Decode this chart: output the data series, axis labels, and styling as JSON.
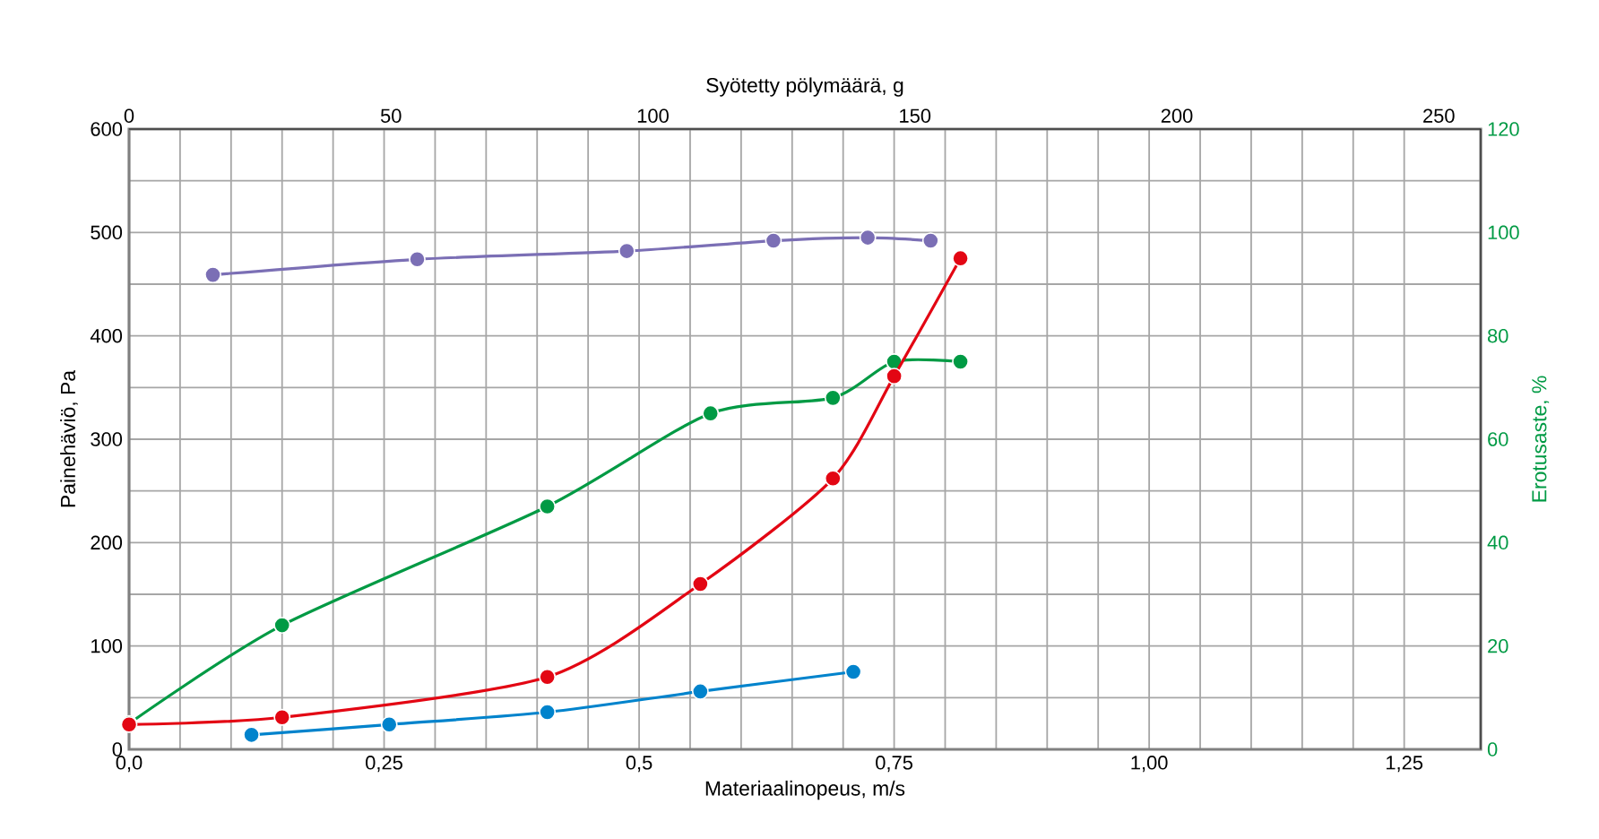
{
  "chart_data": {
    "type": "line",
    "xlabel": "Materiaalinopeus, m/s",
    "x2label": "Syötetty pölymäärä, g",
    "ylabel": "Painehäviö, Pa",
    "y2label": "Erotusaste, %",
    "xlim": [
      0,
      1.325
    ],
    "xticks": [
      {
        "value": 0,
        "label": "0,0"
      },
      {
        "value": 0.25,
        "label": "0,25"
      },
      {
        "value": 0.5,
        "label": "0,5"
      },
      {
        "value": 0.75,
        "label": "0,75"
      },
      {
        "value": 1.0,
        "label": "1,00"
      },
      {
        "value": 1.25,
        "label": "1,25"
      }
    ],
    "x2lim": [
      0,
      258
    ],
    "x2ticks": [
      0,
      50,
      100,
      150,
      200,
      250
    ],
    "ylim": [
      0,
      600
    ],
    "yticks": [
      0,
      100,
      200,
      300,
      400,
      500,
      600
    ],
    "y2lim": [
      0,
      120
    ],
    "y2ticks": [
      0,
      20,
      40,
      60,
      80,
      100,
      120
    ],
    "grid": true,
    "marker": "circle",
    "line_style": "solid",
    "series": [
      {
        "color": "#7b6fb5",
        "axis": "x2",
        "x": [
          16,
          55,
          95,
          123,
          141,
          153
        ],
        "values": [
          459,
          474,
          482,
          492,
          495,
          492
        ]
      },
      {
        "color": "#009a44",
        "axis": "y2",
        "x": [
          0,
          0.15,
          0.41,
          0.57,
          0.69,
          0.75,
          0.815
        ],
        "values": [
          5,
          24,
          47,
          65,
          68,
          75,
          75
        ]
      },
      {
        "color": "#e30613",
        "x": [
          0,
          0.15,
          0.41,
          0.56,
          0.69,
          0.75,
          0.815
        ],
        "values": [
          24,
          31,
          70,
          160,
          262,
          361,
          475
        ]
      },
      {
        "color": "#0083cc",
        "x": [
          0.12,
          0.255,
          0.41,
          0.56,
          0.71
        ],
        "values": [
          14,
          24,
          36,
          56,
          75
        ]
      }
    ]
  }
}
